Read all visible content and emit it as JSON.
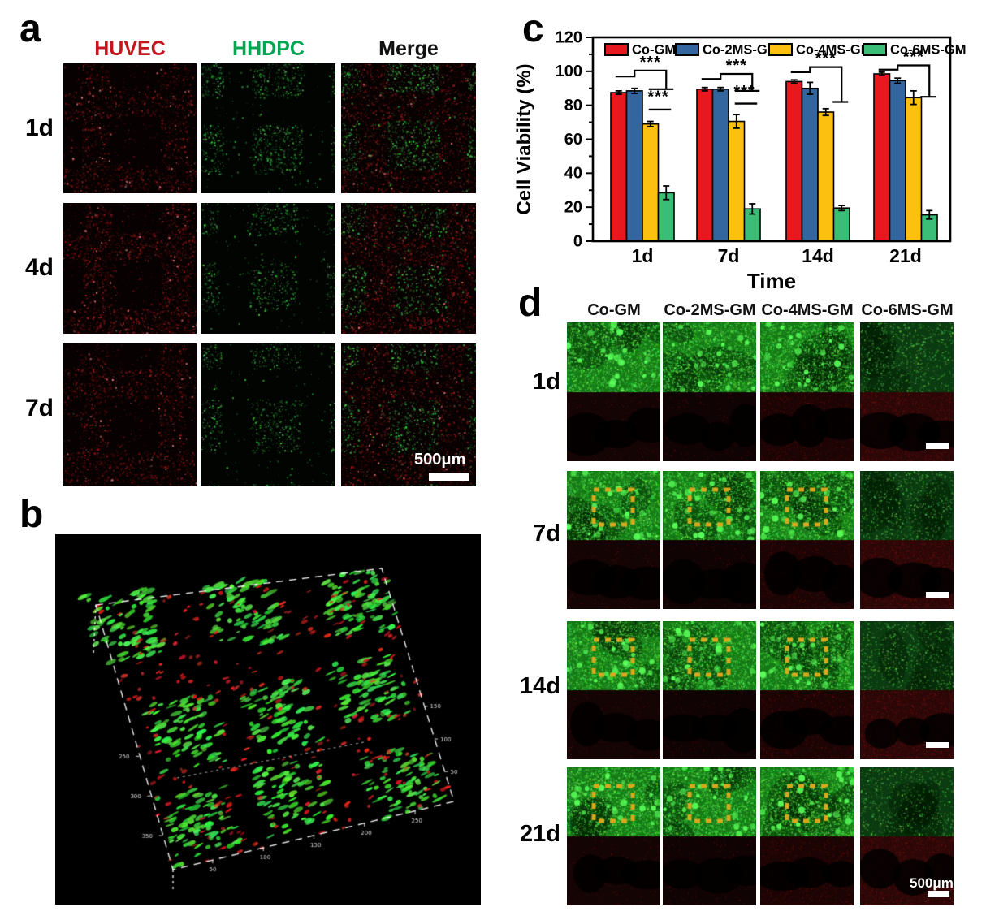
{
  "panels": {
    "a": {
      "letter": "a",
      "column_headers": [
        {
          "label": "HUVEC",
          "color": "#c4161c"
        },
        {
          "label": "HHDPC",
          "color": "#00a651"
        },
        {
          "label": "Merge",
          "color": "#111111"
        }
      ],
      "row_labels": [
        "1d",
        "4d",
        "7d"
      ],
      "scale_bar_label": "500μm"
    },
    "b": {
      "letter": "b",
      "colors": {
        "green": "#3ce83c",
        "red": "#e03028",
        "frame": "#ffffff"
      },
      "axis_ticks": {
        "bottom": [
          "50",
          "100",
          "150",
          "200",
          "250"
        ],
        "right": [
          "50",
          "100",
          "150"
        ],
        "left": [
          "250",
          "300",
          "350"
        ]
      }
    },
    "c": {
      "letter": "c"
    },
    "d": {
      "letter": "d",
      "column_headers": [
        "Co-GM",
        "Co-2MS-GM",
        "Co-4MS-GM",
        "Co-6MS-GM"
      ],
      "row_labels": [
        "1d",
        "7d",
        "14d",
        "21d"
      ],
      "scale_bar_label": "500μm",
      "dashed_square_color": "#d9a81c"
    }
  },
  "chart_data": {
    "type": "bar",
    "title": "",
    "categories": [
      "1d",
      "7d",
      "14d",
      "21d"
    ],
    "series": [
      {
        "name": "Co-GM",
        "color": "#e8181f",
        "values": [
          87.5,
          89.5,
          94.0,
          98.5
        ],
        "errors": [
          1.0,
          1.0,
          1.0,
          1.0
        ]
      },
      {
        "name": "Co-2MS-GM",
        "color": "#33659e",
        "values": [
          88.5,
          89.5,
          90.0,
          94.5
        ],
        "errors": [
          1.5,
          1.0,
          3.5,
          1.5
        ]
      },
      {
        "name": "Co-4MS-GM",
        "color": "#fcc011",
        "values": [
          69.0,
          70.5,
          76.0,
          84.5
        ],
        "errors": [
          1.5,
          4.0,
          2.0,
          4.0
        ]
      },
      {
        "name": "Co-6MS-GM",
        "color": "#3cbd77",
        "values": [
          28.5,
          19.0,
          19.5,
          15.5
        ],
        "errors": [
          4.0,
          3.0,
          1.5,
          2.5
        ]
      }
    ],
    "xlabel": "Time",
    "ylabel": "Cell Viability (%)",
    "ylim": [
      0,
      120
    ],
    "ytick_step": 20,
    "grid": false,
    "legend_position": "top-inside",
    "significance": [
      {
        "group": 0,
        "stars": "***",
        "low_y": 97.0,
        "main_y": 100.5,
        "drop_y": 89.5,
        "second": {
          "stars": "***",
          "stars_y": 82.0,
          "line_y": 77.5
        }
      },
      {
        "group": 1,
        "stars": "***",
        "low_y": 95.5,
        "main_y": 98.5,
        "drop_y": 88.5,
        "second": {
          "stars": "***",
          "stars_y": 85.0,
          "line_y": 81.0
        }
      },
      {
        "group": 2,
        "stars": "***",
        "low_y": 99.5,
        "main_y": 102.5,
        "drop_y": 82.0
      },
      {
        "group": 3,
        "stars": "***",
        "low_y": 101.0,
        "main_y": 103.5,
        "drop_y": 85.0
      }
    ]
  }
}
